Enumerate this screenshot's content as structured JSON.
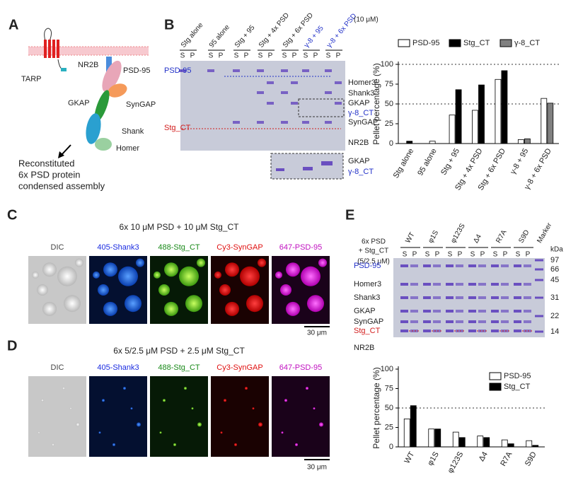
{
  "panel_labels": [
    "A",
    "B",
    "C",
    "D",
    "E"
  ],
  "panel_a": {
    "labels": [
      "TARP",
      "NR2B",
      "PSD-95",
      "GKAP",
      "SynGAP",
      "Shank",
      "Homer"
    ],
    "caption": [
      "Reconstituted",
      "6x PSD protein",
      "condensed assembly"
    ]
  },
  "panel_b_gel": {
    "lanes": [
      "Stg alone",
      "95 alone",
      "Stg + 95",
      "Stg + 4x PSD",
      "Stg + 6x PSD",
      "γ-8 + 95",
      "γ-8 + 6x PSD"
    ],
    "concentration": "(10 μM)",
    "lane_fractions": [
      "S",
      "P"
    ],
    "left_labels": [
      "PSD-95",
      "Stg_CT"
    ],
    "right_labels": [
      "Homer3",
      "Shank3",
      "GKAP",
      "γ-8_CT",
      "SynGAP",
      "NR2B"
    ],
    "inset_labels": [
      "GKAP",
      "γ-8_CT"
    ]
  },
  "panel_c": {
    "title": "6x 10 μM PSD + 10 μM Stg_CT",
    "channels": [
      "DIC",
      "405-Shank3",
      "488-Stg_CT",
      "Cy3-SynGAP",
      "647-PSD-95"
    ],
    "scale_bar": "30 μm"
  },
  "panel_d": {
    "title": "6x 5/2.5 μM PSD + 2.5 μM Stg_CT",
    "channels": [
      "DIC",
      "405-Shank3",
      "488-Stg_CT",
      "Cy3-SynGAP",
      "647-PSD-95"
    ],
    "scale_bar": "30 μm"
  },
  "panel_e_gel": {
    "condition": [
      "6x PSD",
      "+ Stg_CT",
      "(5/2.5 μM)"
    ],
    "lanes": [
      "WT",
      "φ1S",
      "φ123S",
      "Δ4",
      "R7A",
      "S9D",
      "Marker"
    ],
    "lane_fractions": [
      "S",
      "P"
    ],
    "marker_unit": "kDa",
    "left_labels": [
      "PSD-95",
      "Homer3",
      "Shank3",
      "GKAP",
      "SynGAP",
      "Stg_CT",
      "NR2B"
    ],
    "marker_sizes": [
      97,
      66,
      45,
      31,
      22,
      14
    ]
  },
  "chart_data": [
    {
      "type": "bar",
      "y_label": "Pellet percentage (%)",
      "categories": [
        "Stg alone",
        "95 alone",
        "Stg + 95",
        "Stg + 4x PSD",
        "Stg + 6x PSD",
        "γ-8 + 95",
        "γ-8 + 6x PSD"
      ],
      "series": [
        {
          "name": "PSD-95",
          "color": "#ffffff",
          "values": [
            null,
            3,
            36,
            42,
            81,
            5,
            57
          ]
        },
        {
          "name": "Stg_CT",
          "color": "#000000",
          "values": [
            3,
            null,
            68,
            74,
            92,
            null,
            null
          ]
        },
        {
          "name": "γ-8_CT",
          "color": "#808080",
          "values": [
            null,
            null,
            null,
            null,
            null,
            6,
            51
          ]
        }
      ],
      "ylim": [
        0,
        100
      ],
      "yticks": [
        0,
        25,
        50,
        75,
        100
      ],
      "reference_lines": [
        50,
        100
      ],
      "legend": "top"
    },
    {
      "type": "bar",
      "y_label": "Pellet percentage (%)",
      "categories": [
        "WT",
        "φ1S",
        "φ123S",
        "Δ4",
        "R7A",
        "S9D"
      ],
      "series": [
        {
          "name": "PSD-95",
          "color": "#ffffff",
          "values": [
            36,
            23,
            19,
            14,
            9,
            8
          ]
        },
        {
          "name": "Stg_CT",
          "color": "#000000",
          "values": [
            53,
            23,
            12,
            12,
            4,
            2
          ]
        }
      ],
      "ylim": [
        0,
        100
      ],
      "yticks": [
        0,
        25,
        50,
        75,
        100
      ],
      "reference_lines": [
        50
      ],
      "legend": "upper right"
    }
  ]
}
